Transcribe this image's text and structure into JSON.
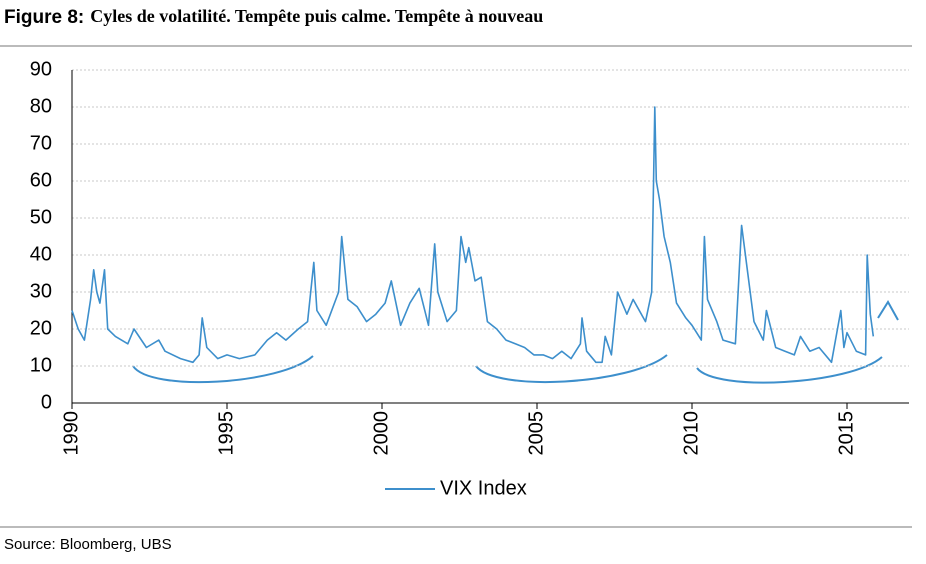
{
  "chart_data": {
    "type": "line",
    "title_label": "Figure 8:",
    "title": "Cyles de volatilité. Tempête puis calme. Tempête à nouveau",
    "source": "Source:  Bloomberg, UBS",
    "x": [
      1990.0,
      1990.2,
      1990.4,
      1990.6,
      1990.7,
      1990.8,
      1990.9,
      1991.0,
      1991.05,
      1991.15,
      1991.4,
      1991.8,
      1992.0,
      1992.4,
      1992.8,
      1993.0,
      1993.5,
      1993.9,
      1994.1,
      1994.2,
      1994.35,
      1994.7,
      1995.0,
      1995.4,
      1995.9,
      1996.3,
      1996.6,
      1996.9,
      1997.3,
      1997.6,
      1997.8,
      1997.9,
      1998.2,
      1998.6,
      1998.7,
      1998.9,
      1999.2,
      1999.5,
      1999.8,
      2000.1,
      2000.3,
      2000.6,
      2000.9,
      2001.2,
      2001.5,
      2001.7,
      2001.8,
      2002.1,
      2002.4,
      2002.55,
      2002.7,
      2002.8,
      2003.0,
      2003.2,
      2003.4,
      2003.7,
      2004.0,
      2004.3,
      2004.6,
      2004.9,
      2005.2,
      2005.5,
      2005.8,
      2006.1,
      2006.4,
      2006.45,
      2006.6,
      2006.9,
      2007.1,
      2007.2,
      2007.4,
      2007.6,
      2007.9,
      2008.1,
      2008.5,
      2008.7,
      2008.8,
      2008.85,
      2008.95,
      2009.1,
      2009.3,
      2009.5,
      2009.8,
      2010.0,
      2010.3,
      2010.4,
      2010.5,
      2010.8,
      2011.0,
      2011.4,
      2011.6,
      2011.8,
      2012.0,
      2012.3,
      2012.4,
      2012.7,
      2013.0,
      2013.3,
      2013.5,
      2013.8,
      2014.1,
      2014.5,
      2014.8,
      2014.9,
      2015.0,
      2015.3,
      2015.6,
      2015.65,
      2015.75,
      2015.85
    ],
    "series": [
      {
        "name": "VIX Index",
        "color": "#3d8fcc",
        "values": [
          25,
          20,
          17,
          28,
          36,
          30,
          27,
          33,
          36,
          20,
          18,
          16,
          20,
          15,
          17,
          14,
          12,
          11,
          13,
          23,
          15,
          12,
          13,
          12,
          13,
          17,
          19,
          17,
          20,
          22,
          38,
          25,
          21,
          30,
          45,
          28,
          26,
          22,
          24,
          27,
          33,
          21,
          27,
          31,
          21,
          43,
          30,
          22,
          25,
          45,
          38,
          42,
          33,
          34,
          22,
          20,
          17,
          16,
          15,
          13,
          13,
          12,
          14,
          12,
          16,
          23,
          14,
          11,
          11,
          18,
          13,
          30,
          24,
          28,
          22,
          30,
          80,
          60,
          55,
          45,
          38,
          27,
          23,
          21,
          17,
          45,
          28,
          22,
          17,
          16,
          48,
          35,
          22,
          17,
          25,
          15,
          14,
          13,
          18,
          14,
          15,
          11,
          25,
          15,
          19,
          14,
          13,
          40,
          24,
          18
        ]
      }
    ],
    "xlim": [
      1990,
      2017
    ],
    "xticks": [
      1990,
      1995,
      2000,
      2005,
      2010,
      2015
    ],
    "ylim": [
      0,
      90
    ],
    "yticks": [
      0,
      10,
      20,
      30,
      40,
      50,
      60,
      70,
      80,
      90
    ],
    "grid": true
  }
}
